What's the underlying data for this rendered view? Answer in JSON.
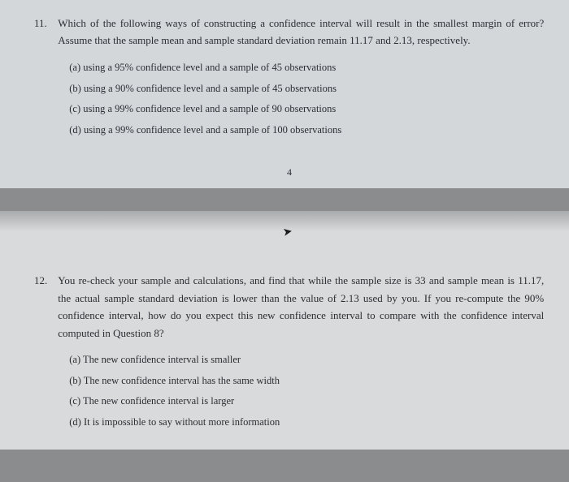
{
  "q11": {
    "number": "11.",
    "stem": "Which of the following ways of constructing a confidence interval will result in the smallest margin of error? Assume that the sample mean and sample standard deviation remain 11.17 and 2.13, respectively.",
    "options": {
      "a": "(a)  using a 95% confidence level and a sample of 45 observations",
      "b": "(b)  using a 90% confidence level and a sample of 45 observations",
      "c": "(c)  using a 99% confidence level and a sample of 90 observations",
      "d": "(d)  using a 99% confidence level and a sample of 100 observations"
    }
  },
  "page_number": "4",
  "q12": {
    "number": "12.",
    "stem": "You re-check your sample and calculations, and find that while the sample size is 33 and sample mean is 11.17, the actual sample standard deviation is lower than the value of 2.13 used by you. If you re-compute the 90% confidence interval, how do you expect this new confidence interval to compare with the confidence interval computed in Question 8?",
    "options": {
      "a": "(a)  The new confidence interval is smaller",
      "b": "(b)  The new confidence interval has the same width",
      "c": "(c)  The new confidence interval is larger",
      "d": "(d)  It is impossible to say without more information"
    }
  },
  "colors": {
    "page_top_bg": "#d4d7da",
    "page_bottom_bg": "#d9dadb",
    "body_bg": "#8a8c8e",
    "text": "#2a2e33"
  }
}
